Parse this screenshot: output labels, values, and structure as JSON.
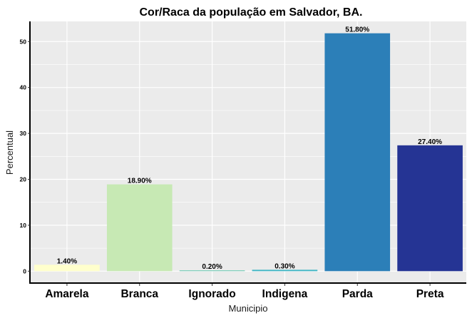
{
  "chart_data": {
    "type": "bar",
    "title": "Cor/Raca da população em Salvador, BA.",
    "xlabel": "Municipio",
    "ylabel": "Percentual",
    "categories": [
      "Amarela",
      "Branca",
      "Ignorado",
      "Indigena",
      "Parda",
      "Preta"
    ],
    "values": [
      1.4,
      18.9,
      0.2,
      0.3,
      51.8,
      27.4
    ],
    "data_labels": [
      "1.40%",
      "18.90%",
      "0.20%",
      "0.30%",
      "51.80%",
      "27.40%"
    ],
    "colors": [
      "#FFFFCC",
      "#C7E9B4",
      "#7FCDBB",
      "#41B6C4",
      "#2C7FB8",
      "#253494"
    ],
    "ylim": [
      -2.59,
      54.39
    ],
    "yticks": [
      0,
      10,
      20,
      30,
      40,
      50
    ],
    "grid": true,
    "panel_background": "#EBEBEB",
    "grid_color": "#FFFFFF",
    "legend": "none"
  }
}
